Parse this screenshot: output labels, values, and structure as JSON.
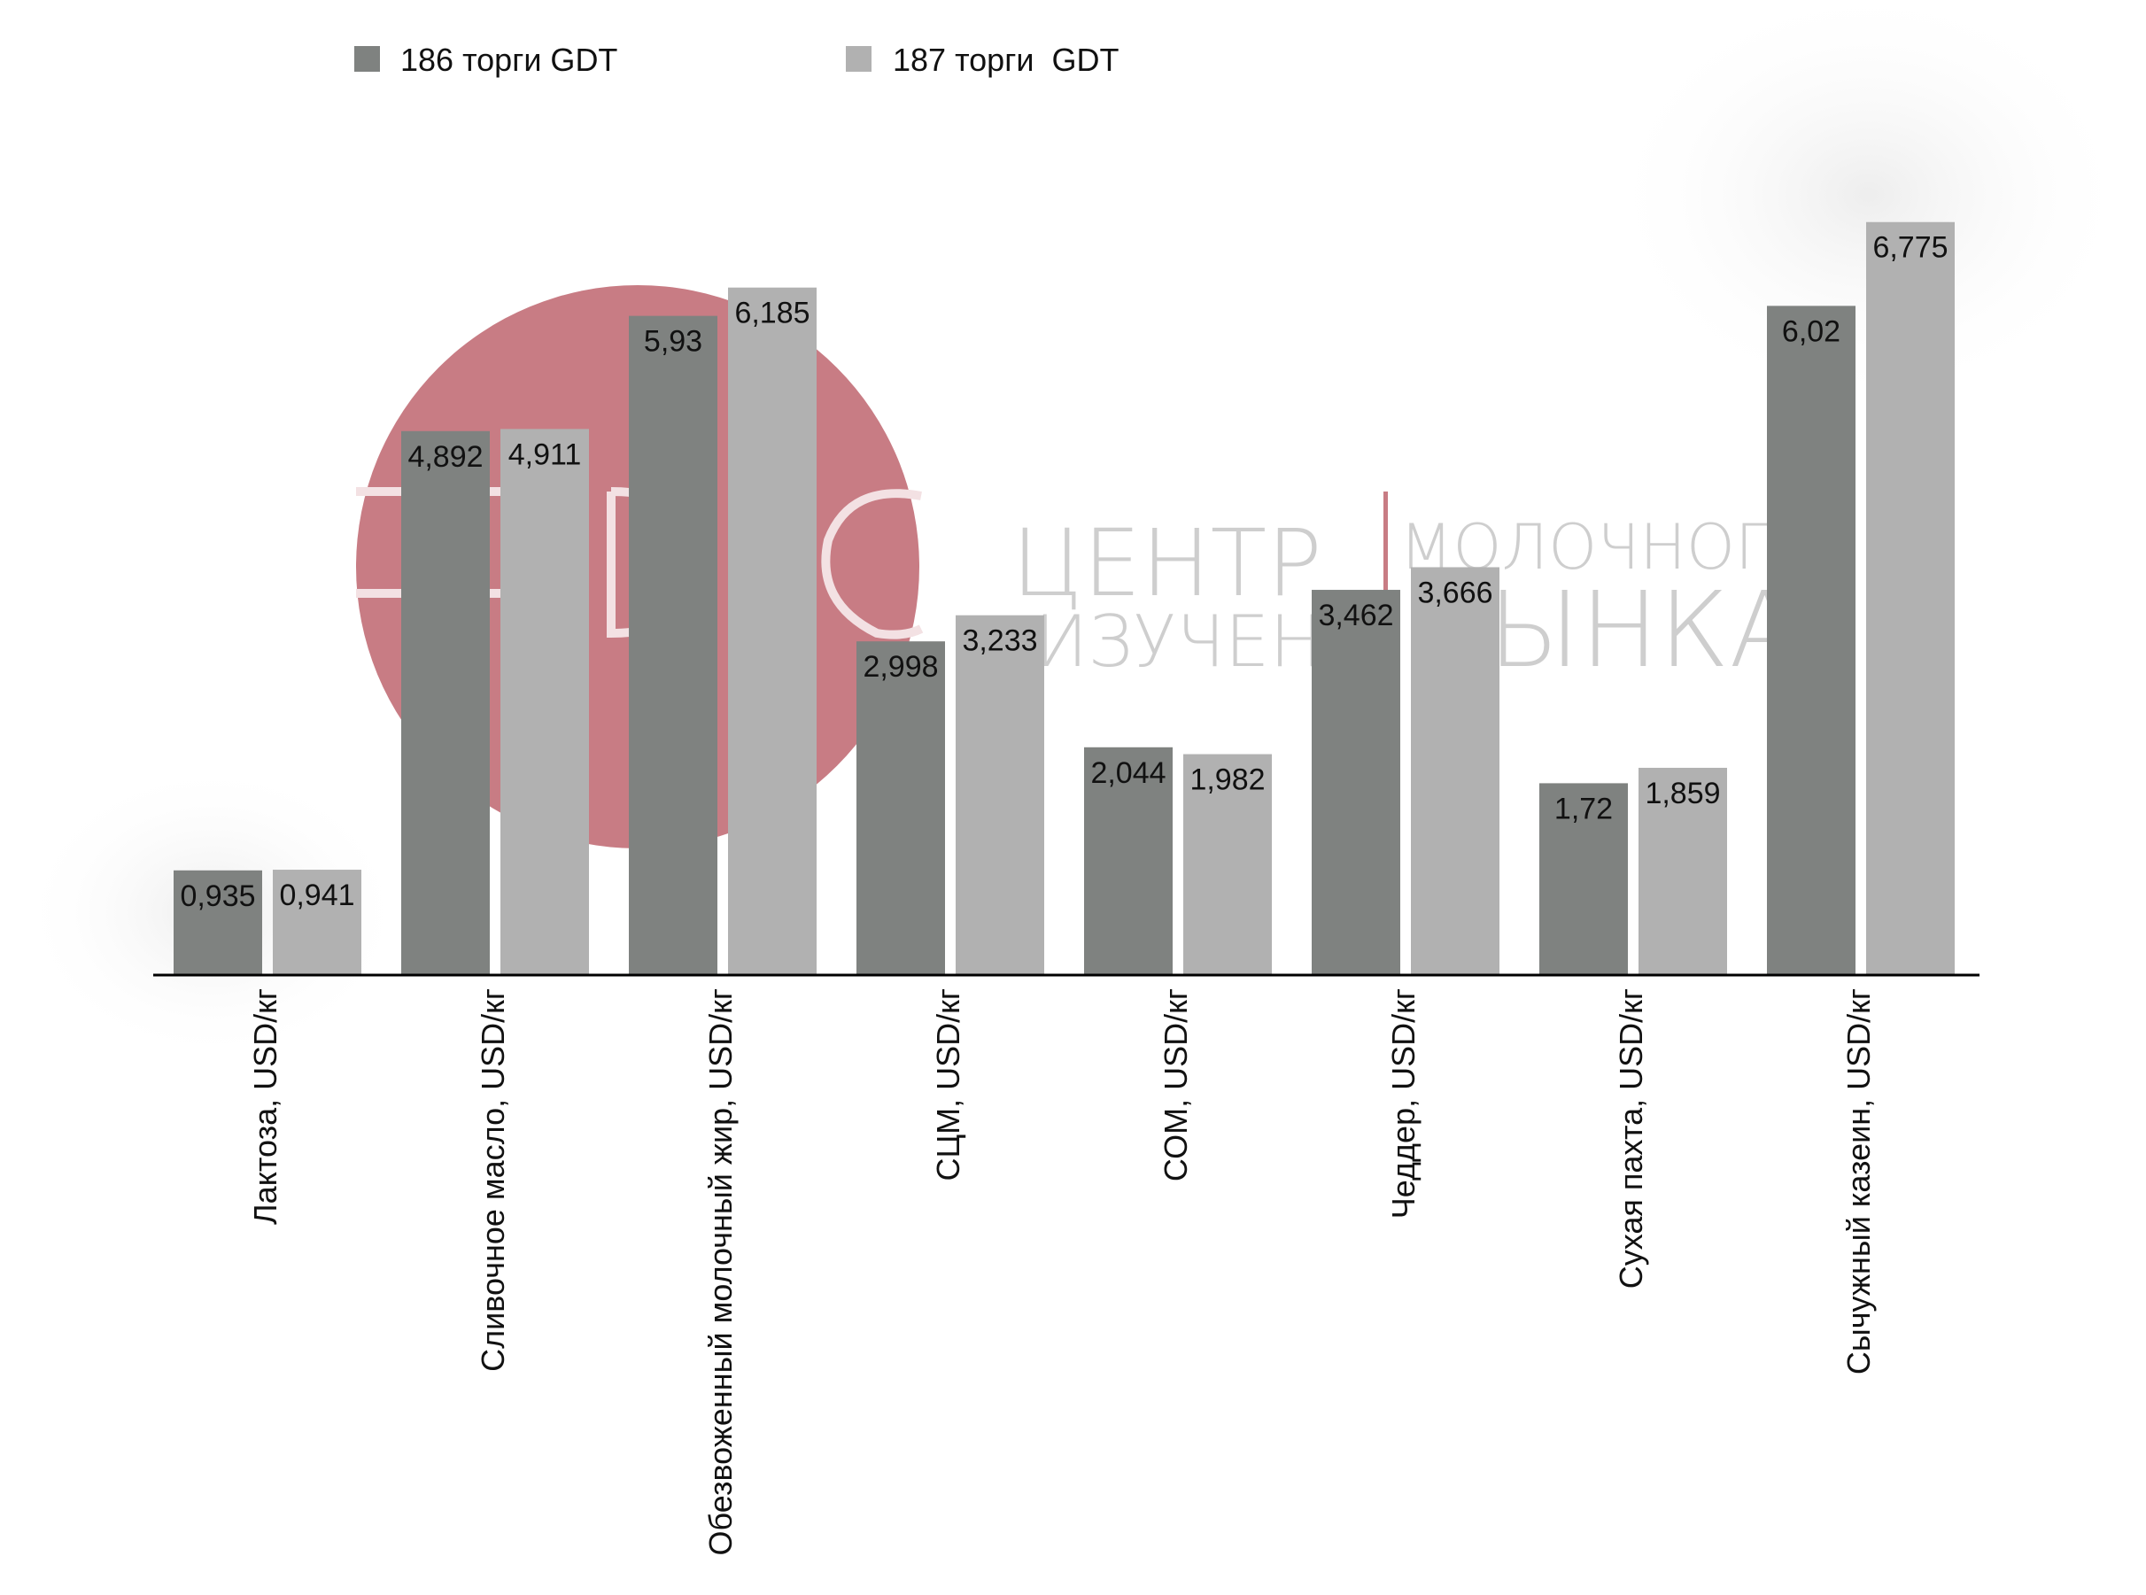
{
  "chart_data": {
    "type": "bar",
    "categories": [
      "Лактоза,  USD/кг",
      "Сливочное масло, USD/кг",
      "Обезвоженный молочный жир, USD/кг",
      "СЦМ, USD/кг",
      "СОМ, USD/кг",
      "Чеддер, USD/кг",
      "Сухая пахта, USD/кг",
      "Сычужный казеин, USD/кг"
    ],
    "series": [
      {
        "name": "186 торги GDT",
        "color": "#7f8280",
        "values": [
          0.935,
          4.892,
          5.93,
          2.998,
          2.044,
          3.462,
          1.72,
          6.02
        ],
        "labels": [
          "0,935",
          "4,892",
          "5,93",
          "2,998",
          "2,044",
          "3,462",
          "1,72",
          "6,02"
        ]
      },
      {
        "name": "187 торги  GDT",
        "color": "#b1b1b1",
        "values": [
          0.941,
          4.911,
          6.185,
          3.233,
          1.982,
          3.666,
          1.859,
          6.775
        ],
        "labels": [
          "0,941",
          "4,911",
          "6,185",
          "3,233",
          "1,982",
          "3,666",
          "1,859",
          "6,775"
        ]
      }
    ],
    "ylim": [
      0,
      7.1
    ],
    "grid": false,
    "legend_position": "top-left",
    "title": "",
    "xlabel": "",
    "ylabel": ""
  },
  "watermark": {
    "line1_left": "ЦЕНТР",
    "line1_right": "МОЛОЧНОГ",
    "line2_left": "ИЗУЧЕНИ",
    "line2_right": "ЫНКА",
    "circle_color": "#c87c84"
  }
}
